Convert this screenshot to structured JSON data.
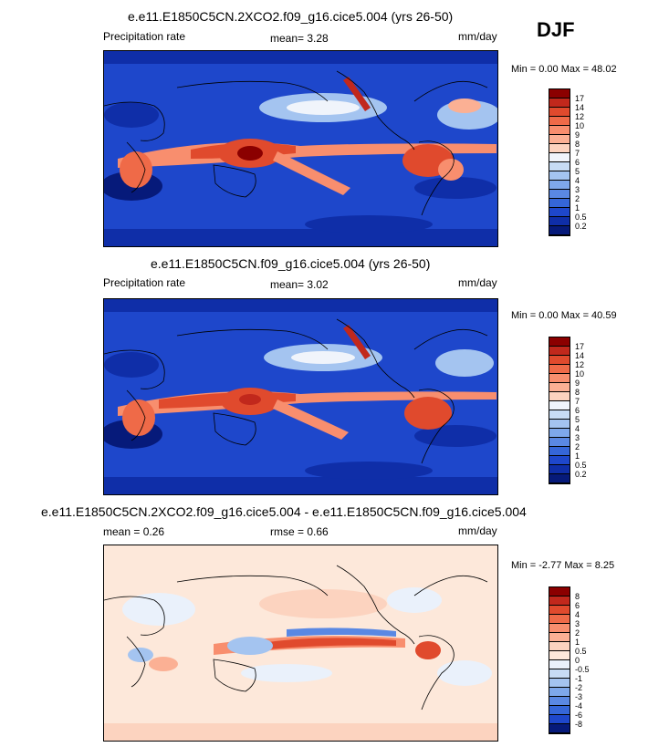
{
  "season": "DJF",
  "panels": [
    {
      "title": "e.e11.E1850C5CN.2XCO2.f09_g16.cice5.004 (yrs 26-50)",
      "left_label": "Precipitation rate",
      "stat1": "mean=  3.28",
      "units": "mm/day",
      "minmax": "Min =   0.00 Max =  48.02",
      "levels": [
        "17",
        "14",
        "12",
        "10",
        "9",
        "8",
        "7",
        "6",
        "5",
        "4",
        "3",
        "2",
        "1",
        "0.5",
        "0.2"
      ],
      "colors": [
        "#8b0000",
        "#c1281c",
        "#e04a2d",
        "#ef6a48",
        "#f88e6e",
        "#fbb094",
        "#fcd3bf",
        "#f0f4fb",
        "#c7dcf5",
        "#a4c4f0",
        "#7ea8eb",
        "#5a88e3",
        "#3566d8",
        "#1e47cb",
        "#0f2ea8",
        "#061a7a"
      ]
    },
    {
      "title": "e.e11.E1850C5CN.f09_g16.cice5.004 (yrs 26-50)",
      "left_label": "Precipitation rate",
      "stat1": "mean=  3.02",
      "units": "mm/day",
      "minmax": "Min =   0.00 Max =  40.59",
      "levels": [
        "17",
        "14",
        "12",
        "10",
        "9",
        "8",
        "7",
        "6",
        "5",
        "4",
        "3",
        "2",
        "1",
        "0.5",
        "0.2"
      ],
      "colors": [
        "#8b0000",
        "#c1281c",
        "#e04a2d",
        "#ef6a48",
        "#f88e6e",
        "#fbb094",
        "#fcd3bf",
        "#f0f4fb",
        "#c7dcf5",
        "#a4c4f0",
        "#7ea8eb",
        "#5a88e3",
        "#3566d8",
        "#1e47cb",
        "#0f2ea8",
        "#061a7a"
      ]
    },
    {
      "title": "e.e11.E1850C5CN.2XCO2.f09_g16.cice5.004 - e.e11.E1850C5CN.f09_g16.cice5.004",
      "left_label": "mean =   0.26",
      "stat1": "rmse =   0.66",
      "units": "mm/day",
      "minmax": "Min =  -2.77 Max =   8.25",
      "levels": [
        "8",
        "6",
        "4",
        "3",
        "2",
        "1",
        "0.5",
        "0",
        "-0.5",
        "-1",
        "-2",
        "-3",
        "-4",
        "-6",
        "-8"
      ],
      "colors": [
        "#8b0000",
        "#c1281c",
        "#e04a2d",
        "#ef6a48",
        "#f88e6e",
        "#fbb094",
        "#fcd3bf",
        "#fde8da",
        "#eaf1fb",
        "#c7dcf5",
        "#a4c4f0",
        "#7ea8eb",
        "#5a88e3",
        "#3566d8",
        "#1e47cb",
        "#061a7a"
      ]
    }
  ]
}
